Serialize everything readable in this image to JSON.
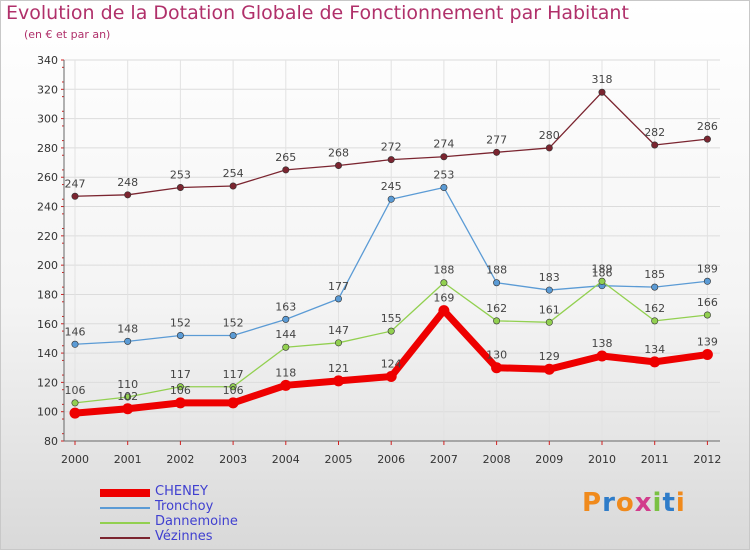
{
  "title": "Evolution de la Dotation Globale de Fonctionnement par Habitant",
  "subtitle": "(en € et par an)",
  "logo": {
    "text": "Proxiti",
    "colors": [
      "#f08a1c",
      "#2e7cc9",
      "#f08a1c",
      "#d23c8c",
      "#7ac142",
      "#2e7cc9",
      "#f08a1c"
    ]
  },
  "chart_data": {
    "type": "line",
    "x": [
      "2000",
      "2001",
      "2002",
      "2003",
      "2004",
      "2005",
      "2006",
      "2007",
      "2008",
      "2009",
      "2010",
      "2011",
      "2012"
    ],
    "ylim": [
      80,
      340
    ],
    "yticks": [
      80,
      100,
      120,
      140,
      160,
      180,
      200,
      220,
      240,
      260,
      280,
      300,
      320,
      340
    ],
    "grid": true,
    "legend_position": "bottom-left",
    "series": [
      {
        "name": "CHENEY",
        "color": "#ee0000",
        "values": [
          99,
          102,
          106,
          106,
          118,
          121,
          124,
          169,
          130,
          129,
          138,
          134,
          139
        ],
        "labels": [
          "",
          "102",
          "106",
          "106",
          "118",
          "121",
          "124",
          "169",
          "130",
          "129",
          "138",
          "134",
          "139"
        ]
      },
      {
        "name": "Tronchoy",
        "color": "#5b9bd5",
        "values": [
          146,
          148,
          152,
          152,
          163,
          177,
          245,
          253,
          188,
          183,
          186,
          185,
          189
        ],
        "labels": [
          "146",
          "148",
          "152",
          "152",
          "163",
          "177",
          "245",
          "253",
          "188",
          "183",
          "186",
          "185",
          "189"
        ]
      },
      {
        "name": "Dannemoine",
        "color": "#92d050",
        "values": [
          106,
          110,
          117,
          117,
          144,
          147,
          155,
          188,
          162,
          161,
          189,
          162,
          166
        ],
        "labels": [
          "106",
          "110",
          "117",
          "117",
          "144",
          "147",
          "155",
          "188",
          "162",
          "161",
          "189",
          "162",
          "166"
        ]
      },
      {
        "name": "Vézinnes",
        "color": "#7b2530",
        "values": [
          247,
          248,
          253,
          254,
          265,
          268,
          272,
          274,
          277,
          280,
          318,
          282,
          286
        ],
        "labels": [
          "247",
          "248",
          "253",
          "254",
          "265",
          "268",
          "272",
          "274",
          "277",
          "280",
          "318",
          "282",
          "286"
        ]
      }
    ]
  }
}
